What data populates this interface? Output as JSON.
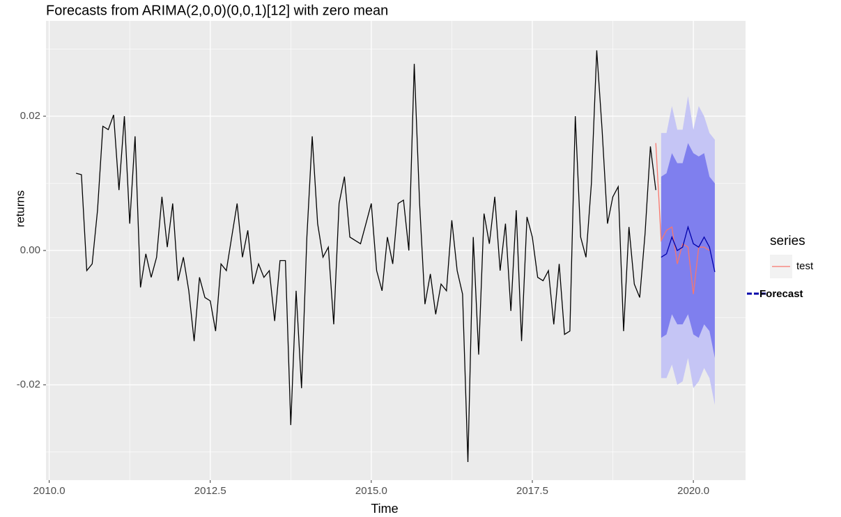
{
  "chart_data": {
    "type": "line",
    "title": "Forecasts from ARIMA(2,0,0)(0,0,1)[12] with zero mean",
    "x_label": "Time",
    "y_label": "returns",
    "xlim": [
      2009.95,
      2020.81
    ],
    "ylim": [
      -0.0342,
      0.0342
    ],
    "xticks": [
      {
        "value": 2010,
        "label": "2010.0"
      },
      {
        "value": 2012.5,
        "label": "2012.5"
      },
      {
        "value": 2015,
        "label": "2015.0"
      },
      {
        "value": 2017.5,
        "label": "2017.5"
      },
      {
        "value": 2020,
        "label": "2020.0"
      }
    ],
    "yticks": [
      -0.02,
      {
        "value": 0,
        "label": "0.00"
      },
      0.02
    ],
    "grid": true,
    "legend_title": "series",
    "legend_position": "right",
    "series": [
      {
        "color": "#000000",
        "x": [
          2010.417,
          2010.5,
          2010.583,
          2010.667,
          2010.75,
          2010.833,
          2010.917,
          2011,
          2011.083,
          2011.167,
          2011.25,
          2011.333,
          2011.417,
          2011.5,
          2011.583,
          2011.667,
          2011.75,
          2011.833,
          2011.917,
          2012,
          2012.083,
          2012.167,
          2012.25,
          2012.333,
          2012.417,
          2012.5,
          2012.583,
          2012.667,
          2012.75,
          2012.833,
          2012.917,
          2013,
          2013.083,
          2013.167,
          2013.25,
          2013.333,
          2013.417,
          2013.5,
          2013.583,
          2013.667,
          2013.75,
          2013.833,
          2013.917,
          2014,
          2014.083,
          2014.167,
          2014.25,
          2014.333,
          2014.417,
          2014.5,
          2014.583,
          2014.667,
          2014.75,
          2014.833,
          2014.917,
          2015,
          2015.083,
          2015.167,
          2015.25,
          2015.333,
          2015.417,
          2015.5,
          2015.583,
          2015.667,
          2015.75,
          2015.833,
          2015.917,
          2016,
          2016.083,
          2016.167,
          2016.25,
          2016.333,
          2016.417,
          2016.5,
          2016.583,
          2016.667,
          2016.75,
          2016.833,
          2016.917,
          2017,
          2017.083,
          2017.167,
          2017.25,
          2017.333,
          2017.417,
          2017.5,
          2017.583,
          2017.667,
          2017.75,
          2017.833,
          2017.917,
          2018,
          2018.083,
          2018.167,
          2018.25,
          2018.333,
          2018.417,
          2018.5,
          2018.583,
          2018.667,
          2018.75,
          2018.833,
          2018.917,
          2019,
          2019.083,
          2019.167,
          2019.25,
          2019.333,
          2019.417
        ],
        "values": [
          0.0115,
          0.0113,
          -0.003,
          -0.002,
          0.006,
          0.0185,
          0.018,
          0.0202,
          0.009,
          0.02,
          0.004,
          0.017,
          -0.0055,
          -0.0005,
          -0.004,
          -0.001,
          0.008,
          0.0005,
          0.007,
          -0.0045,
          -0.001,
          -0.006,
          -0.0135,
          -0.004,
          -0.007,
          -0.0075,
          -0.012,
          -0.002,
          -0.003,
          0.002,
          0.007,
          -0.001,
          0.003,
          -0.005,
          -0.002,
          -0.004,
          -0.003,
          -0.0105,
          -0.0015,
          -0.0015,
          -0.026,
          -0.006,
          -0.0205,
          0.002,
          0.017,
          0.004,
          -0.001,
          0.0005,
          -0.011,
          0.007,
          0.011,
          0.002,
          0.0015,
          0.001,
          0.004,
          0.007,
          -0.003,
          -0.006,
          0.002,
          -0.002,
          0.007,
          0.0075,
          0,
          0.0278,
          0.007,
          -0.008,
          -0.0035,
          -0.0095,
          -0.005,
          -0.006,
          0.0045,
          -0.003,
          -0.0065,
          -0.0315,
          0.002,
          -0.0155,
          0.0055,
          0.001,
          0.008,
          -0.003,
          0.004,
          -0.009,
          0.006,
          -0.0135,
          0.005,
          0.002,
          -0.004,
          -0.0045,
          -0.003,
          -0.011,
          -0.002,
          -0.0125,
          -0.012,
          0.02,
          0.002,
          -0.001,
          0.01,
          0.0298,
          0.018,
          0.004,
          0.008,
          0.0095,
          -0.012,
          0.0035,
          -0.005,
          -0.007,
          0.0025,
          0.0155,
          0.009
        ]
      },
      {
        "name": "test",
        "color": "#F8766D",
        "x": [
          2019.417,
          2019.5,
          2019.583,
          2019.667,
          2019.75,
          2019.833,
          2019.917,
          2020,
          2020.083,
          2020.167,
          2020.25
        ],
        "values": [
          0.016,
          0.0015,
          0.003,
          0.0035,
          -0.002,
          0.001,
          0.0005,
          -0.0065,
          0.0005,
          0.0005,
          0
        ]
      },
      {
        "name": "Forecast",
        "color": "#0000AA",
        "band_80_color": "#7F7FEE",
        "band_95_color": "#C5C5F5",
        "x": [
          2019.5,
          2019.583,
          2019.667,
          2019.75,
          2019.833,
          2019.917,
          2020,
          2020.083,
          2020.167,
          2020.25,
          2020.333
        ],
        "values": [
          -0.001,
          -0.0005,
          0.002,
          0,
          0.0005,
          0.0035,
          0.001,
          0.0005,
          0.002,
          0.0005,
          -0.0032
        ],
        "upper_80": [
          0.011,
          0.0115,
          0.0145,
          0.013,
          0.013,
          0.016,
          0.0145,
          0.014,
          0.0145,
          0.011,
          0.01
        ],
        "lower_80": [
          -0.013,
          -0.0125,
          -0.0095,
          -0.011,
          -0.011,
          -0.0095,
          -0.0125,
          -0.013,
          -0.011,
          -0.012,
          -0.016
        ],
        "upper_95": [
          0.0175,
          0.0175,
          0.0215,
          0.018,
          0.018,
          0.023,
          0.018,
          0.0215,
          0.02,
          0.0175,
          0.0165
        ],
        "lower_95": [
          -0.019,
          -0.019,
          -0.017,
          -0.02,
          -0.0195,
          -0.016,
          -0.0205,
          -0.0195,
          -0.0175,
          -0.019,
          -0.023
        ]
      }
    ]
  }
}
